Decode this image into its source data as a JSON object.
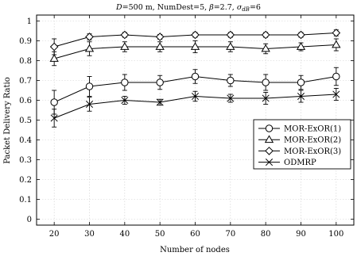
{
  "chart_data": {
    "type": "line",
    "title": "D=500 m, NumDest=5, β=2.7, σ_dB=6",
    "title_parts": {
      "p1": "D",
      "p2": "=500 m, NumDest=5, ",
      "p3": "β",
      "p4": "=2.7, ",
      "p5": "σ",
      "p6": "dB",
      "p7": "=6"
    },
    "xlabel": "Number of nodes",
    "ylabel": "Packet Delivery Ratio",
    "x": [
      20,
      30,
      40,
      50,
      60,
      70,
      80,
      90,
      100
    ],
    "xlim": [
      15,
      105
    ],
    "ylim": [
      -0.03,
      1.03
    ],
    "xticks": [
      "20",
      "30",
      "40",
      "50",
      "60",
      "70",
      "80",
      "90",
      "100"
    ],
    "yticks": [
      "0",
      "0.1",
      "0.2",
      "0.3",
      "0.4",
      "0.5",
      "0.6",
      "0.7",
      "0.8",
      "0.9",
      "1"
    ],
    "grid": true,
    "legend_position": "right-middle",
    "series": [
      {
        "name": "MOR-ExOR(1)",
        "marker": "circle",
        "color": "#000000",
        "values": [
          0.59,
          0.67,
          0.69,
          0.69,
          0.72,
          0.7,
          0.69,
          0.69,
          0.72
        ],
        "errors": [
          0.06,
          0.05,
          0.04,
          0.035,
          0.035,
          0.03,
          0.04,
          0.035,
          0.045
        ]
      },
      {
        "name": "MOR-ExOR(2)",
        "marker": "triangle",
        "color": "#000000",
        "values": [
          0.81,
          0.86,
          0.87,
          0.87,
          0.87,
          0.87,
          0.86,
          0.87,
          0.88
        ],
        "errors": [
          0.035,
          0.035,
          0.025,
          0.025,
          0.03,
          0.025,
          0.025,
          0.02,
          0.03
        ]
      },
      {
        "name": "MOR-ExOR(3)",
        "marker": "diamond",
        "color": "#000000",
        "values": [
          0.87,
          0.92,
          0.93,
          0.92,
          0.93,
          0.93,
          0.93,
          0.93,
          0.94
        ],
        "errors": [
          0.04,
          0.015,
          0.012,
          0.012,
          0.012,
          0.012,
          0.012,
          0.012,
          0.015
        ]
      },
      {
        "name": "ODMRP",
        "marker": "x",
        "color": "#000000",
        "values": [
          0.51,
          0.58,
          0.6,
          0.59,
          0.62,
          0.61,
          0.61,
          0.62,
          0.63
        ],
        "errors": [
          0.045,
          0.035,
          0.02,
          0.015,
          0.025,
          0.02,
          0.03,
          0.03,
          0.03
        ]
      }
    ]
  }
}
